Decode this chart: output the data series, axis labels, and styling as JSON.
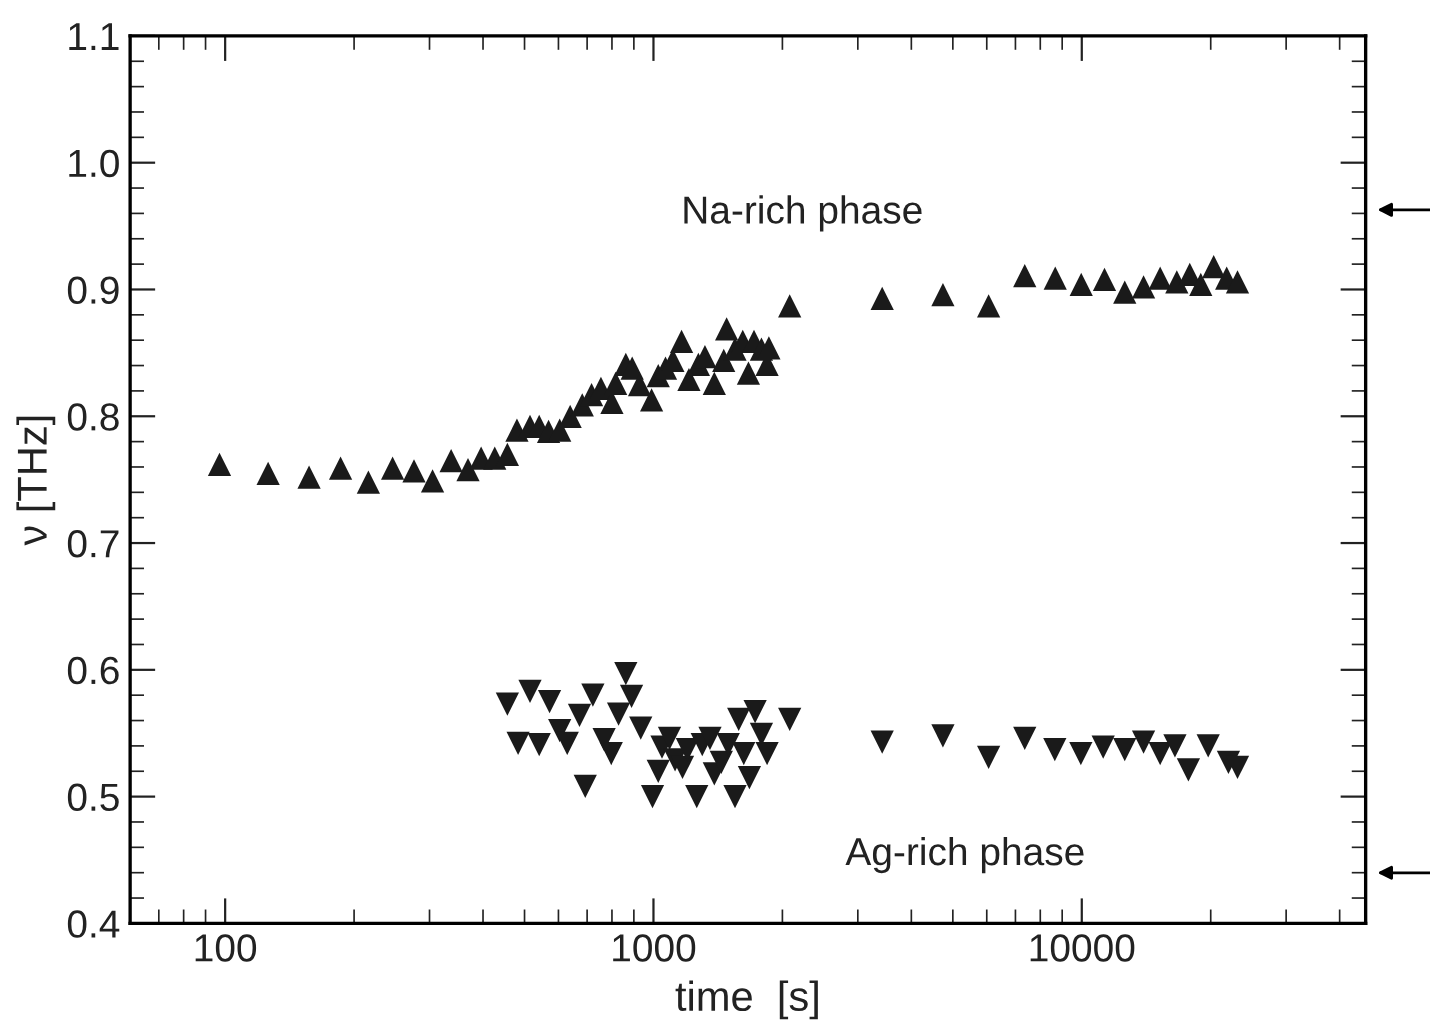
{
  "chart_data": {
    "type": "scatter",
    "xlabel": "time  [s]",
    "ylabel": "ν [THz]",
    "log": "x",
    "grid": false,
    "legend": false,
    "xlim": [
      60,
      46000
    ],
    "ylim": [
      0.4,
      1.1
    ],
    "xticks": [
      {
        "value": 60,
        "label": null
      },
      {
        "value": 70,
        "label": null
      },
      {
        "value": 80,
        "label": null
      },
      {
        "value": 90,
        "label": null
      },
      100,
      {
        "value": 200,
        "label": null
      },
      {
        "value": 300,
        "label": null
      },
      {
        "value": 400,
        "label": null
      },
      {
        "value": 500,
        "label": null
      },
      {
        "value": 600,
        "label": null
      },
      {
        "value": 700,
        "label": null
      },
      {
        "value": 800,
        "label": null
      },
      {
        "value": 900,
        "label": null
      },
      1000,
      {
        "value": 2000,
        "label": null
      },
      {
        "value": 3000,
        "label": null
      },
      {
        "value": 4000,
        "label": null
      },
      {
        "value": 5000,
        "label": null
      },
      {
        "value": 6000,
        "label": null
      },
      {
        "value": 7000,
        "label": null
      },
      {
        "value": 8000,
        "label": null
      },
      {
        "value": 9000,
        "label": null
      },
      10000,
      {
        "value": 20000,
        "label": null
      },
      {
        "value": 30000,
        "label": null
      },
      {
        "value": 40000,
        "label": null
      }
    ],
    "yticks": [
      0.4,
      {
        "value": 0.42,
        "label": null
      },
      {
        "value": 0.44,
        "label": null
      },
      {
        "value": 0.46,
        "label": null
      },
      {
        "value": 0.48,
        "label": null
      },
      0.5,
      {
        "value": 0.52,
        "label": null
      },
      {
        "value": 0.54,
        "label": null
      },
      {
        "value": 0.56,
        "label": null
      },
      {
        "value": 0.58,
        "label": null
      },
      0.6,
      {
        "value": 0.62,
        "label": null
      },
      {
        "value": 0.64,
        "label": null
      },
      {
        "value": 0.66,
        "label": null
      },
      {
        "value": 0.68,
        "label": null
      },
      0.7,
      {
        "value": 0.72,
        "label": null
      },
      {
        "value": 0.74,
        "label": null
      },
      {
        "value": 0.76,
        "label": null
      },
      {
        "value": 0.78,
        "label": null
      },
      0.8,
      {
        "value": 0.82,
        "label": null
      },
      {
        "value": 0.84,
        "label": null
      },
      {
        "value": 0.86,
        "label": null
      },
      {
        "value": 0.88,
        "label": null
      },
      0.9,
      {
        "value": 0.92,
        "label": null
      },
      {
        "value": 0.94,
        "label": null
      },
      {
        "value": 0.96,
        "label": null
      },
      {
        "value": 0.98,
        "label": null
      },
      {
        "value": 1,
        "label": "1.0"
      },
      {
        "value": 1.02,
        "label": null
      },
      {
        "value": 1.04,
        "label": null
      },
      {
        "value": 1.06,
        "label": null
      },
      {
        "value": 1.08,
        "label": null
      },
      1.1
    ],
    "series": [
      {
        "name": "Na-rich phase",
        "color": "#1a1a1a",
        "marker": "triangle",
        "x": [
          97,
          126,
          157,
          186,
          216,
          246,
          276,
          305,
          337,
          369,
          396,
          426,
          456,
          480,
          515,
          541,
          569,
          604,
          639,
          682,
          717,
          754,
          800,
          816,
          862,
          892,
          928,
          990,
          1026,
          1067,
          1110,
          1163,
          1210,
          1273,
          1319,
          1387,
          1459,
          1482,
          1550,
          1616,
          1666,
          1717,
          1787,
          1842,
          1860,
          2080,
          3420,
          4740,
          6060,
          7360,
          8670,
          9970,
          11300,
          12600,
          13940,
          15240,
          16670,
          17870,
          18960,
          20320,
          21790,
          23100
        ],
        "values": [
          0.762,
          0.755,
          0.752,
          0.759,
          0.748,
          0.759,
          0.757,
          0.749,
          0.765,
          0.758,
          0.767,
          0.767,
          0.77,
          0.789,
          0.792,
          0.792,
          0.788,
          0.789,
          0.8,
          0.809,
          0.817,
          0.822,
          0.811,
          0.826,
          0.841,
          0.838,
          0.825,
          0.813,
          0.832,
          0.838,
          0.844,
          0.859,
          0.829,
          0.841,
          0.847,
          0.826,
          0.844,
          0.869,
          0.853,
          0.859,
          0.834,
          0.859,
          0.853,
          0.841,
          0.854,
          0.887,
          0.893,
          0.896,
          0.887,
          0.911,
          0.909,
          0.904,
          0.908,
          0.898,
          0.902,
          0.909,
          0.906,
          0.912,
          0.904,
          0.918,
          0.909,
          0.906
        ]
      },
      {
        "name": "Ag-rich phase",
        "color": "#1a1a1a",
        "marker": "triangle-down",
        "x": [
          456,
          515,
          483,
          541,
          572,
          604,
          629,
          672,
          693,
          722,
          767,
          797,
          829,
          862,
          889,
          934,
          995,
          1026,
          1047,
          1090,
          1123,
          1169,
          1200,
          1262,
          1300,
          1355,
          1387,
          1440,
          1495,
          1550,
          1581,
          1625,
          1675,
          1727,
          1787,
          1842,
          2080,
          3420,
          4740,
          6060,
          7360,
          8650,
          9950,
          11220,
          12600,
          13940,
          15240,
          16500,
          17740,
          19730,
          22000,
          23100
        ],
        "values": [
          0.573,
          0.583,
          0.542,
          0.541,
          0.575,
          0.552,
          0.542,
          0.564,
          0.508,
          0.58,
          0.545,
          0.534,
          0.565,
          0.597,
          0.579,
          0.554,
          0.5,
          0.52,
          0.539,
          0.546,
          0.529,
          0.523,
          0.537,
          0.5,
          0.541,
          0.546,
          0.518,
          0.527,
          0.541,
          0.5,
          0.561,
          0.534,
          0.515,
          0.567,
          0.549,
          0.534,
          0.561,
          0.543,
          0.548,
          0.531,
          0.546,
          0.537,
          0.534,
          0.539,
          0.537,
          0.543,
          0.534,
          0.54,
          0.521,
          0.54,
          0.527,
          0.523
        ]
      }
    ]
  }
}
